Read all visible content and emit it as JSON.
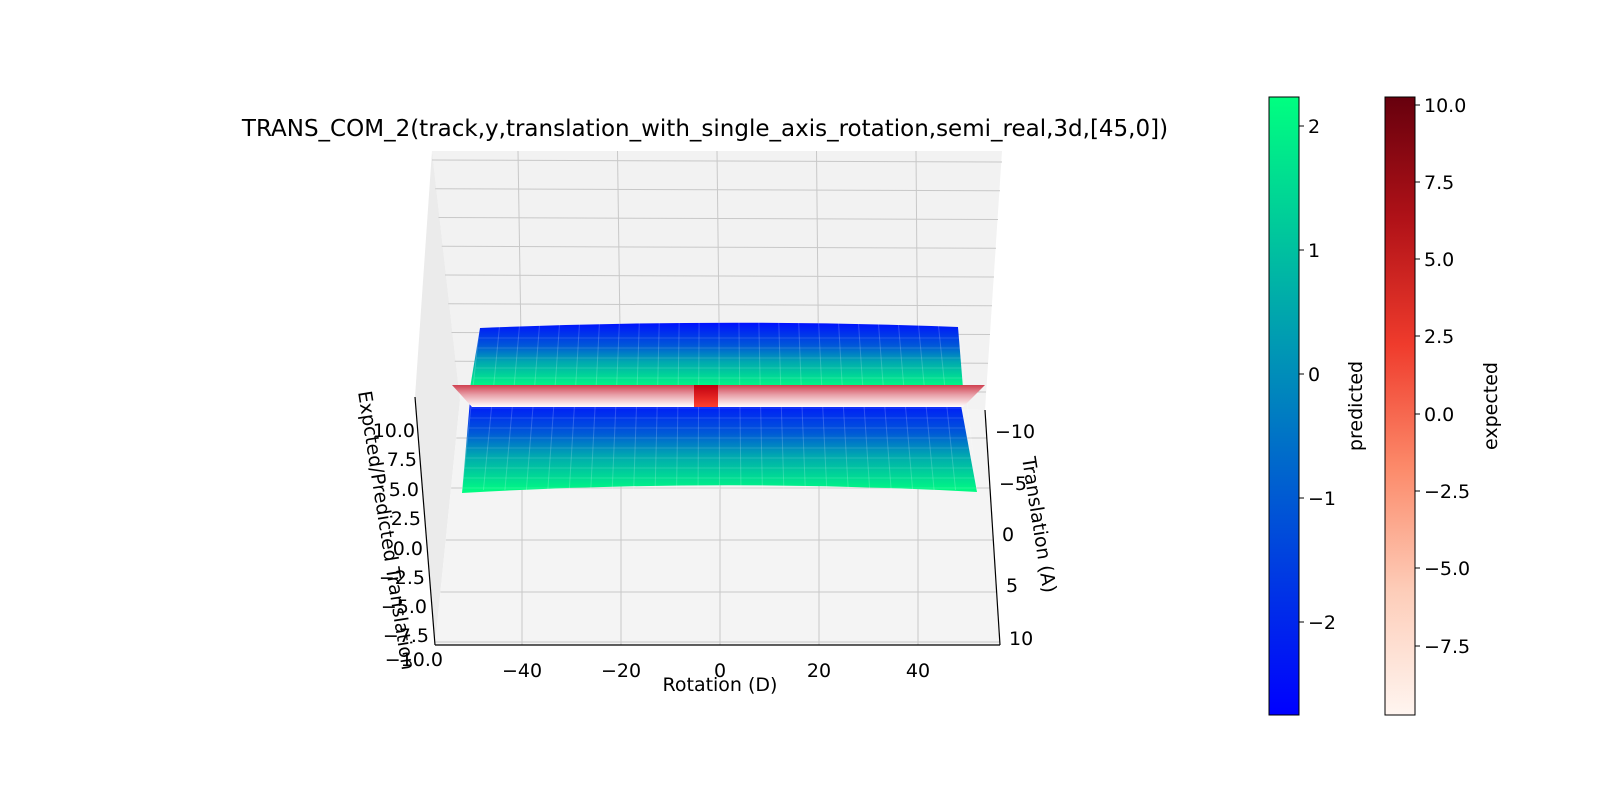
{
  "chart_data": {
    "type": "surface3d",
    "title": "TRANS_COM_2(track,y,translation_with_single_axis_rotation,semi_real,3d,[45,0])",
    "xlabel": "Rotation (D)",
    "ylabel": "Translation (A)",
    "zlabel": "Expcted/Predicted Translation",
    "x_ticks": [
      "−40",
      "−20",
      "0",
      "20",
      "40"
    ],
    "y_ticks": [
      "−10",
      "−5",
      "0",
      "5",
      "10"
    ],
    "z_ticks": [
      "10.0",
      "7.5",
      "5.0",
      "2.5",
      "0.0",
      "−2.5",
      "−5.0",
      "−7.5",
      "−10.0"
    ],
    "x_range": [
      -55,
      55
    ],
    "y_range": [
      -12,
      12
    ],
    "z_range": [
      -10,
      10
    ],
    "view": {
      "elev": 45,
      "azim": 0
    },
    "series": [
      {
        "name": "predicted",
        "colormap": "winter",
        "range": [
          -2.75,
          2.25
        ],
        "z_at_y_min": -2.5,
        "z_at_y_max": 2.2
      },
      {
        "name": "expected",
        "colormap": "Reds",
        "range": [
          -9.6,
          10.2
        ],
        "z_at_y_min": -9.6,
        "z_at_y_max": 10.2
      }
    ],
    "colorbars": [
      {
        "label": "predicted",
        "ticks": [
          "2",
          "1",
          "0",
          "−1",
          "−2"
        ],
        "colors": {
          "top": "#00ff80",
          "bottom": "#0000ff"
        }
      },
      {
        "label": "expected",
        "ticks": [
          "10.0",
          "7.5",
          "5.0",
          "2.5",
          "0.0",
          "−2.5",
          "−5.0",
          "−7.5"
        ],
        "colors": {
          "top": "#67000d",
          "bottom": "#fff5f0"
        }
      }
    ]
  }
}
